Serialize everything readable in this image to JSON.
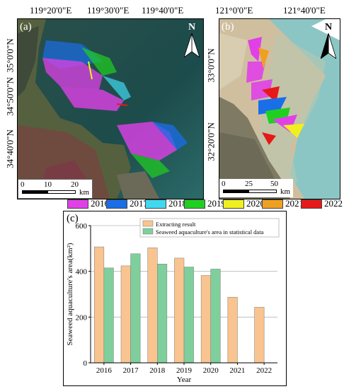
{
  "panels": {
    "a": {
      "label": "(a)",
      "lon_labels": [
        "119°20'0\"E",
        "119°30'0\"E",
        "119°40'0\"E"
      ],
      "lat_labels": [
        "35°0'0\"N",
        "34°50'0\"N",
        "34°40'0\"N"
      ],
      "scale_ticks": [
        "0",
        "10",
        "20"
      ],
      "scale_unit": "km",
      "north": "N"
    },
    "b": {
      "label": "(b)",
      "lon_labels": [
        "121°0'0\"E",
        "121°40'0\"E"
      ],
      "lat_labels": [
        "33°0'0\"N",
        "32°20'0\"N"
      ],
      "scale_ticks": [
        "0",
        "25",
        "50"
      ],
      "scale_unit": "km",
      "north": "N"
    }
  },
  "year_legend": [
    {
      "year": "2016",
      "color": "#e040e8"
    },
    {
      "year": "2017",
      "color": "#1a6ee8"
    },
    {
      "year": "2018",
      "color": "#40d8f0"
    },
    {
      "year": "2019",
      "color": "#20d020"
    },
    {
      "year": "2020",
      "color": "#f0f020"
    },
    {
      "year": "2021",
      "color": "#f0a020"
    },
    {
      "year": "2022",
      "color": "#e81818"
    }
  ],
  "chart_data": {
    "type": "bar",
    "panel_label": "(c)",
    "categories": [
      "2016",
      "2017",
      "2018",
      "2019",
      "2020",
      "2021",
      "2022"
    ],
    "series": [
      {
        "name": "Extracting result",
        "color": "#f9c48f",
        "values": [
          507,
          424,
          503,
          458,
          382,
          287,
          243
        ]
      },
      {
        "name": "Seaweed aquaculture's area in statistical data",
        "color": "#7ecf9c",
        "values": [
          415,
          477,
          432,
          419,
          410,
          null,
          null
        ]
      }
    ],
    "xlabel": "Year",
    "ylabel": "Seaweed aquaculture's area(km²)",
    "ylim": [
      0,
      600
    ],
    "yticks": [
      "0",
      "200",
      "400",
      "600"
    ],
    "grid": true,
    "legend": "top-right"
  }
}
